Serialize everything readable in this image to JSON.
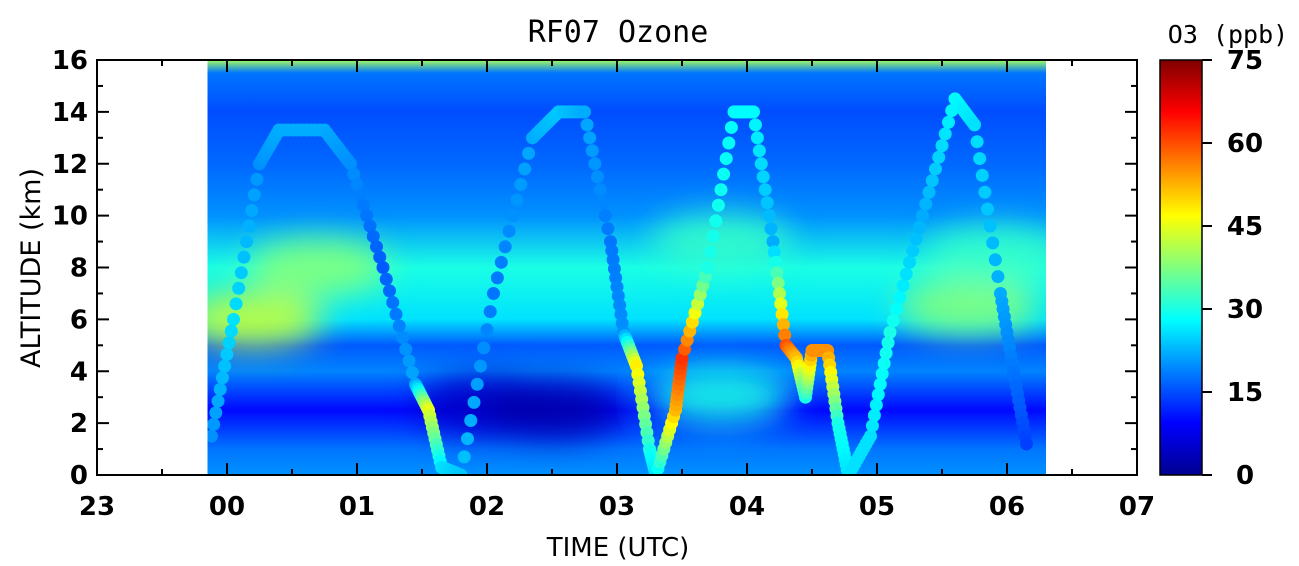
{
  "chart_data": {
    "type": "heatmap",
    "title": "RF07 Ozone",
    "xlabel": "TIME (UTC)",
    "ylabel": "ALTITUDE (km)",
    "x_tick_labels": [
      "23",
      "00",
      "01",
      "02",
      "03",
      "04",
      "05",
      "06",
      "07"
    ],
    "x_ticks_hours": [
      -1,
      0,
      1,
      2,
      3,
      4,
      5,
      6,
      7
    ],
    "y_ticks": [
      0,
      2,
      4,
      6,
      8,
      10,
      12,
      14,
      16
    ],
    "xlim_hours": [
      -1,
      7
    ],
    "ylim": [
      0,
      16
    ],
    "data_extent_hours": [
      -0.15,
      6.3
    ],
    "colorbar": {
      "label": "O3 (ppb)",
      "ticks": [
        0,
        15,
        30,
        45,
        60,
        75
      ],
      "range": [
        0,
        75
      ],
      "colormap": "jet"
    },
    "background_profile": [
      {
        "alt": 0.0,
        "o3": 20
      },
      {
        "alt": 1.0,
        "o3": 18
      },
      {
        "alt": 2.5,
        "o3": 10
      },
      {
        "alt": 4.0,
        "o3": 19
      },
      {
        "alt": 5.0,
        "o3": 16
      },
      {
        "alt": 6.0,
        "o3": 26
      },
      {
        "alt": 8.0,
        "o3": 30
      },
      {
        "alt": 10.0,
        "o3": 20
      },
      {
        "alt": 12.0,
        "o3": 17
      },
      {
        "alt": 14.0,
        "o3": 15
      },
      {
        "alt": 15.5,
        "o3": 18
      },
      {
        "alt": 16.0,
        "o3": 40
      }
    ],
    "anomalies": [
      {
        "t": 0.2,
        "alt": 6.0,
        "o3": 43
      },
      {
        "t": 0.7,
        "alt": 8.0,
        "o3": 38
      },
      {
        "t": 2.0,
        "alt": 2.7,
        "o3": 5
      },
      {
        "t": 2.5,
        "alt": 2.5,
        "o3": 3
      },
      {
        "t": 3.8,
        "alt": 9.0,
        "o3": 32
      },
      {
        "t": 3.8,
        "alt": 3.0,
        "o3": 30
      },
      {
        "t": 5.7,
        "alt": 6.5,
        "o3": 38
      },
      {
        "t": 5.9,
        "alt": 8.5,
        "o3": 32
      }
    ],
    "flight_track": [
      {
        "t": -0.12,
        "alt": 1.5,
        "o3": 20
      },
      {
        "t": 0.05,
        "alt": 6.0,
        "o3": 26
      },
      {
        "t": 0.25,
        "alt": 12.0,
        "o3": 20
      },
      {
        "t": 0.4,
        "alt": 13.3,
        "o3": 22
      },
      {
        "t": 0.75,
        "alt": 13.3,
        "o3": 22
      },
      {
        "t": 0.95,
        "alt": 12.0,
        "o3": 20
      },
      {
        "t": 1.2,
        "alt": 8.0,
        "o3": 16
      },
      {
        "t": 1.45,
        "alt": 3.5,
        "o3": 22
      },
      {
        "t": 1.55,
        "alt": 2.5,
        "o3": 45
      },
      {
        "t": 1.65,
        "alt": 0.3,
        "o3": 26
      },
      {
        "t": 1.8,
        "alt": 0.0,
        "o3": 24
      },
      {
        "t": 2.05,
        "alt": 7.0,
        "o3": 18
      },
      {
        "t": 2.35,
        "alt": 13.0,
        "o3": 22
      },
      {
        "t": 2.55,
        "alt": 14.0,
        "o3": 24
      },
      {
        "t": 2.75,
        "alt": 14.0,
        "o3": 22
      },
      {
        "t": 2.95,
        "alt": 9.0,
        "o3": 18
      },
      {
        "t": 3.05,
        "alt": 5.5,
        "o3": 20
      },
      {
        "t": 3.15,
        "alt": 4.2,
        "o3": 48
      },
      {
        "t": 3.25,
        "alt": 1.0,
        "o3": 30
      },
      {
        "t": 3.3,
        "alt": 0.0,
        "o3": 26
      },
      {
        "t": 3.45,
        "alt": 2.5,
        "o3": 52
      },
      {
        "t": 3.5,
        "alt": 4.5,
        "o3": 62
      },
      {
        "t": 3.7,
        "alt": 8.0,
        "o3": 30
      },
      {
        "t": 3.9,
        "alt": 14.0,
        "o3": 28
      },
      {
        "t": 4.05,
        "alt": 14.0,
        "o3": 28
      },
      {
        "t": 4.2,
        "alt": 9.0,
        "o3": 22
      },
      {
        "t": 4.3,
        "alt": 5.0,
        "o3": 60
      },
      {
        "t": 4.38,
        "alt": 4.5,
        "o3": 52
      },
      {
        "t": 4.45,
        "alt": 3.0,
        "o3": 30
      },
      {
        "t": 4.5,
        "alt": 4.8,
        "o3": 55
      },
      {
        "t": 4.62,
        "alt": 4.8,
        "o3": 55
      },
      {
        "t": 4.7,
        "alt": 2.0,
        "o3": 30
      },
      {
        "t": 4.78,
        "alt": 0.0,
        "o3": 26
      },
      {
        "t": 4.95,
        "alt": 1.5,
        "o3": 26
      },
      {
        "t": 5.1,
        "alt": 5.5,
        "o3": 30
      },
      {
        "t": 5.35,
        "alt": 10.0,
        "o3": 22
      },
      {
        "t": 5.6,
        "alt": 14.5,
        "o3": 28
      },
      {
        "t": 5.75,
        "alt": 13.5,
        "o3": 26
      },
      {
        "t": 5.95,
        "alt": 7.0,
        "o3": 22
      },
      {
        "t": 6.05,
        "alt": 4.0,
        "o3": 18
      },
      {
        "t": 6.15,
        "alt": 1.2,
        "o3": 14
      }
    ]
  }
}
